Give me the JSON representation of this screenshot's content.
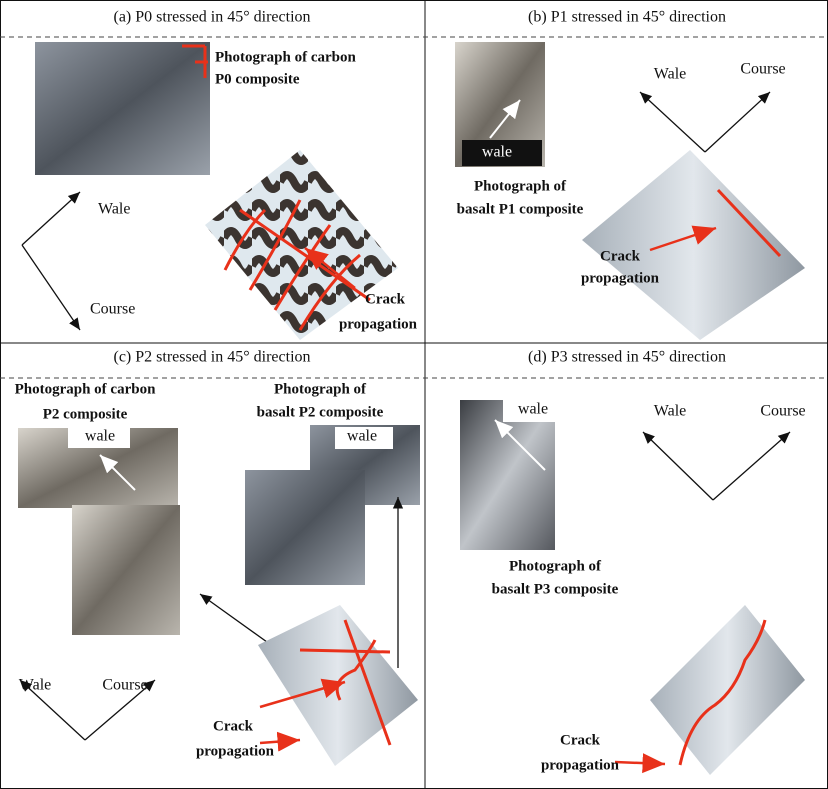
{
  "panels": [
    {
      "title": "(a) P0 stressed in 45° direction",
      "labels": [
        "Photograph of carbon",
        "P0 composite",
        "Wale",
        "Course",
        "Crack",
        "propagation"
      ]
    },
    {
      "title": "(b) P1 stressed in 45° direction",
      "labels": [
        "wale",
        "Photograph of",
        "basalt P1 composite",
        "Wale",
        "Course",
        "Crack",
        "propagation"
      ]
    },
    {
      "title": "(c) P2 stressed in 45° direction",
      "labels": [
        "Photograph of carbon",
        "P2 composite",
        "wale",
        "Photograph of",
        "basalt P2 composite",
        "wale",
        "Wale",
        "Course",
        "Crack",
        "propagation"
      ]
    },
    {
      "title": "(d) P3 stressed in 45° direction",
      "labels": [
        "wale",
        "Wale",
        "Course",
        "Photograph of",
        "basalt P3 composite",
        "Crack",
        "propagation"
      ]
    }
  ]
}
